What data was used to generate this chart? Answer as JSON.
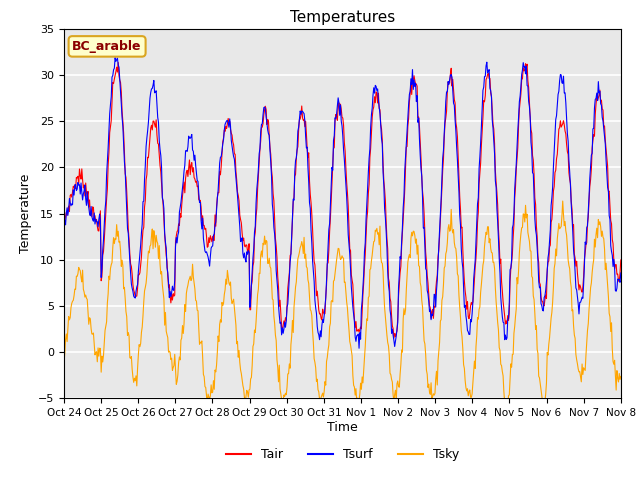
{
  "title": "Temperatures",
  "xlabel": "Time",
  "ylabel": "Temperature",
  "ylim": [
    -5,
    35
  ],
  "site_label": "BC_arable",
  "legend_labels": [
    "Tair",
    "Tsurf",
    "Tsky"
  ],
  "line_colors": [
    "red",
    "blue",
    "orange"
  ],
  "xtick_labels": [
    "Oct 24",
    "Oct 25",
    "Oct 26",
    "Oct 27",
    "Oct 28",
    "Oct 29",
    "Oct 30",
    "Oct 31",
    "Nov 1",
    "Nov 2",
    "Nov 3",
    "Nov 4",
    "Nov 5",
    "Nov 6",
    "Nov 7",
    "Nov 8"
  ],
  "background_color": "#e8e8e8",
  "grid_color": "white",
  "tair_day_peaks": [
    19,
    31,
    25,
    20,
    25,
    26,
    26,
    27,
    28,
    30,
    30,
    30,
    31,
    25,
    28
  ],
  "tair_night_lows": [
    14,
    6,
    6,
    12,
    11,
    3,
    4,
    2,
    2,
    4,
    4,
    3,
    5,
    7,
    8
  ],
  "tsurf_day_peaks": [
    18,
    32,
    29,
    23,
    25,
    26,
    26,
    27,
    29,
    30,
    30,
    31,
    31,
    30,
    28
  ],
  "tsurf_night_lows": [
    14,
    6,
    6,
    10,
    10,
    2,
    2,
    1,
    1,
    4,
    2,
    2,
    5,
    5,
    7
  ],
  "tsky_day_peaks": [
    8,
    13,
    13,
    8,
    8,
    12,
    12,
    11,
    13,
    13,
    14,
    13,
    15,
    15,
    14
  ],
  "tsky_night_lows": [
    0,
    -3,
    -1,
    -5,
    -5,
    -5,
    -5,
    -5,
    -5,
    -5,
    -5,
    -5,
    -5,
    -3,
    -3
  ]
}
